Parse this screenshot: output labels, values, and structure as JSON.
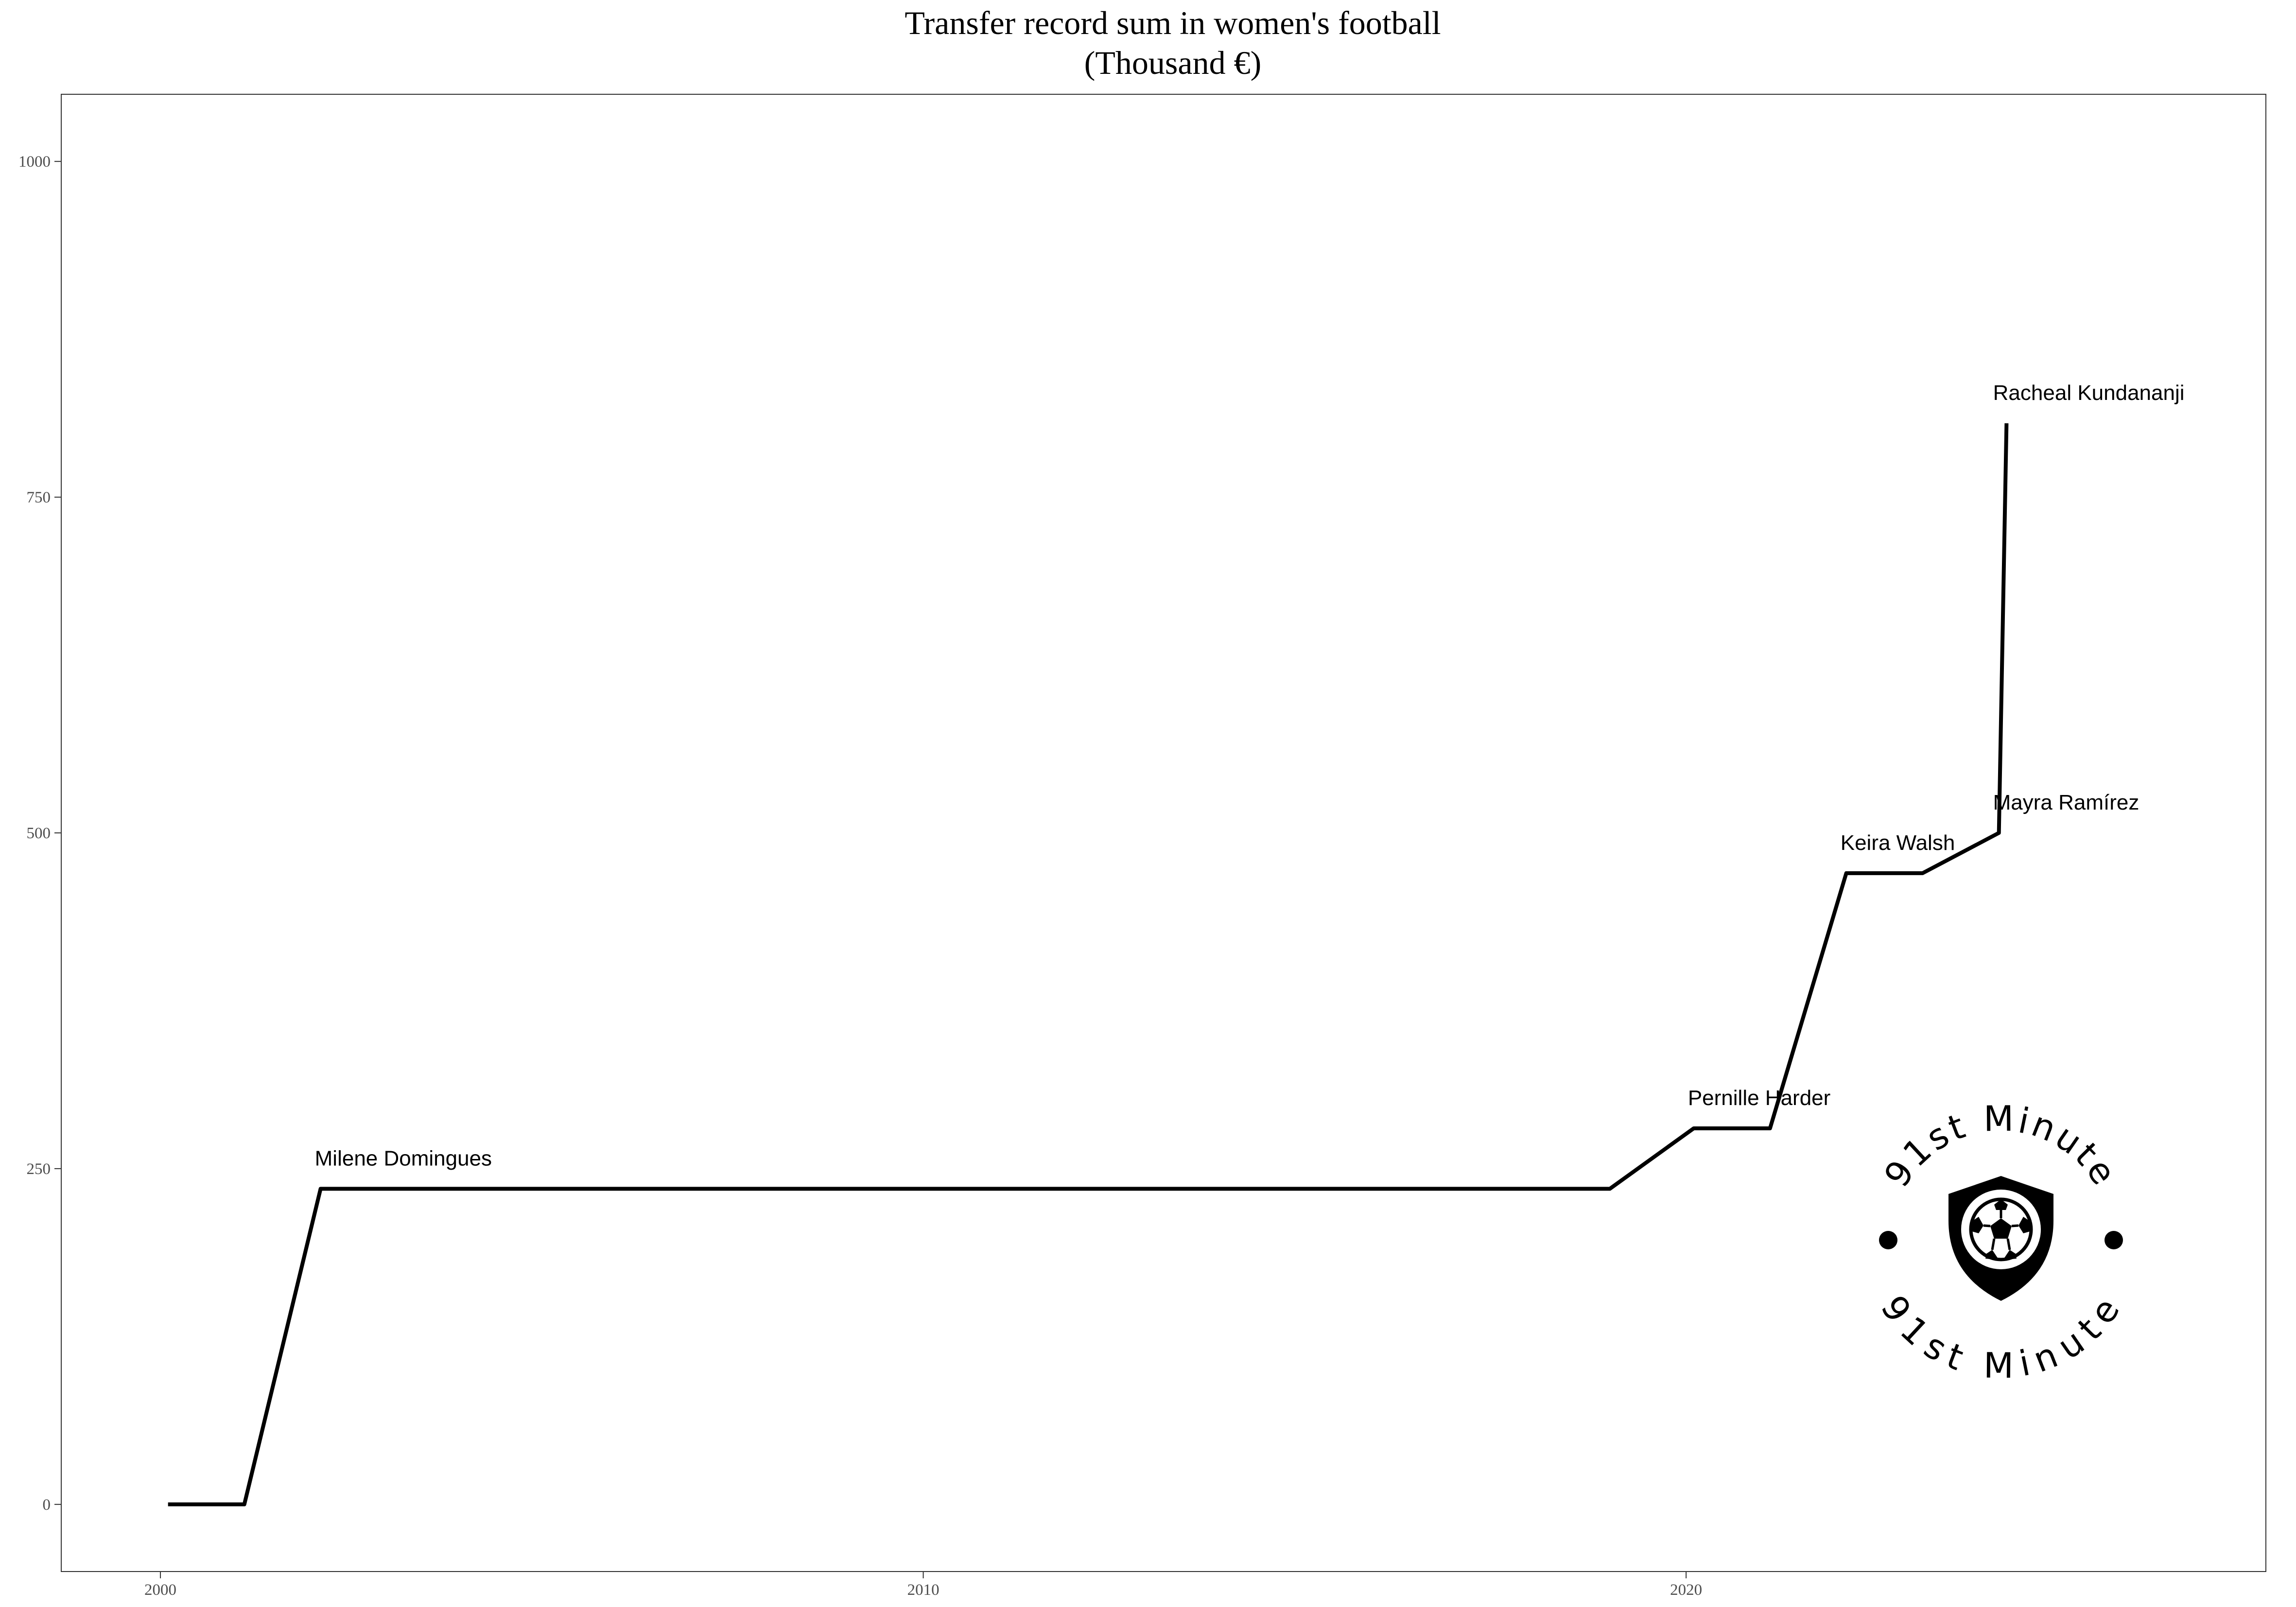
{
  "chart_data": {
    "type": "line",
    "title_line1": "Transfer record sum in women's football",
    "title_line2": "(Thousand €)",
    "xlabel": "",
    "ylabel": "",
    "xlim": [
      1998.7,
      2027.6
    ],
    "ylim": [
      -50,
      1050
    ],
    "x_ticks": [
      2000,
      2010,
      2020
    ],
    "y_ticks": [
      0,
      250,
      500,
      750,
      1000
    ],
    "grid": false,
    "series": [
      {
        "color": "#000000",
        "x": [
          2000.1,
          2001.1,
          2002.1,
          2019.0,
          2020.1,
          2021.1,
          2022.1,
          2023.1,
          2024.1,
          2024.2
        ],
        "y": [
          0,
          0,
          235,
          235,
          280,
          280,
          470,
          470,
          500,
          805
        ]
      }
    ],
    "annotations": [
      {
        "text": "Milene Domingues",
        "x": 2002.1,
        "y": 235
      },
      {
        "text": "Pernille Harder",
        "x": 2020.1,
        "y": 280
      },
      {
        "text": "Keira Walsh",
        "x": 2022.1,
        "y": 470
      },
      {
        "text": "Mayra Ramírez",
        "x": 2024.1,
        "y": 500
      },
      {
        "text": "Racheal Kundananji",
        "x": 2024.1,
        "y": 805
      }
    ]
  },
  "logo": {
    "text": "91st Minute",
    "icon": "soccer-ball-shield-icon"
  }
}
